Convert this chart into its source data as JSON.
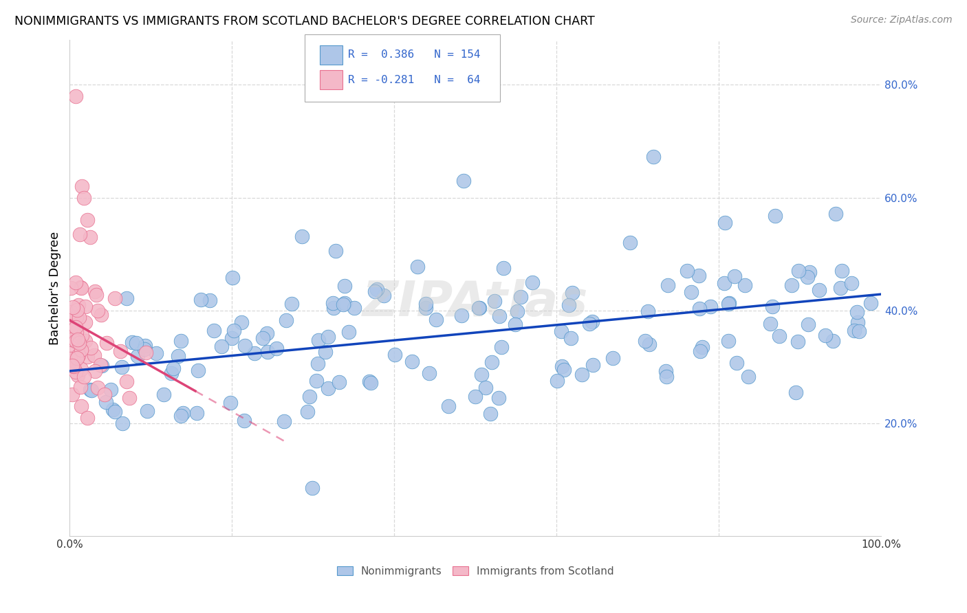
{
  "title": "NONIMMIGRANTS VS IMMIGRANTS FROM SCOTLAND BACHELOR'S DEGREE CORRELATION CHART",
  "source": "Source: ZipAtlas.com",
  "ylabel": "Bachelor's Degree",
  "background_color": "#ffffff",
  "grid_color": "#d8d8d8",
  "nonimm_color": "#aec6e8",
  "nonimm_edge": "#5599cc",
  "imm_color": "#f4b8c8",
  "imm_edge": "#e87090",
  "trend_blue": "#1144bb",
  "trend_pink": "#dd4477",
  "legend_color": "#3366cc",
  "R_nonimm": 0.386,
  "N_nonimm": 154,
  "R_imm": -0.281,
  "N_imm": 64,
  "xlim": [
    0.0,
    1.0
  ],
  "ylim": [
    0.0,
    0.88
  ],
  "yticks": [
    0.2,
    0.4,
    0.6,
    0.8
  ],
  "yticklabels": [
    "20.0%",
    "40.0%",
    "60.0%",
    "80.0%"
  ]
}
